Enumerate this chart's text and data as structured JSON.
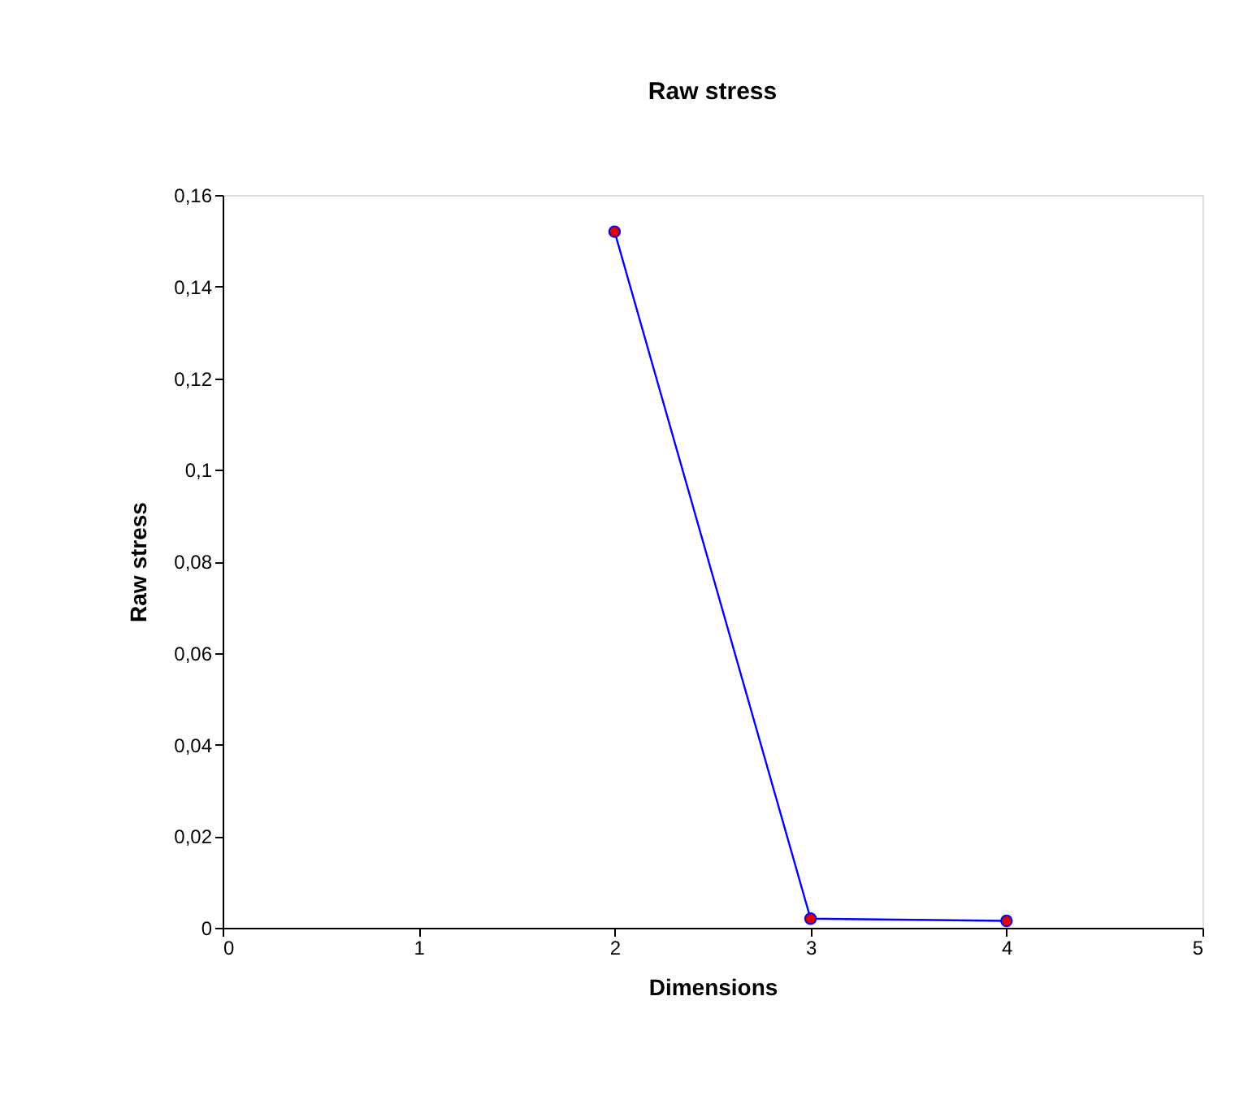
{
  "chart_data": {
    "type": "line",
    "title": "Raw stress",
    "xlabel": "Dimensions",
    "ylabel": "Raw stress",
    "x": [
      2,
      3,
      4
    ],
    "series": [
      {
        "color": "#0000ff",
        "colors": [
          "#e00000",
          "#e00000",
          "#e00000"
        ],
        "values": [
          0.152,
          0.002,
          0.0015
        ]
      }
    ],
    "xlim": [
      0,
      5
    ],
    "xticks": [
      0,
      1,
      2,
      3,
      4,
      5
    ],
    "ylim": [
      0,
      0.16
    ],
    "yticks": [
      0,
      {
        "value": 0.02,
        "label": "0,02"
      },
      {
        "value": 0.04,
        "label": "0,04"
      },
      {
        "value": 0.06,
        "label": "0,06"
      },
      {
        "value": 0.08,
        "label": "0,08"
      },
      {
        "value": 0.1,
        "label": "0,1"
      },
      {
        "value": 0.12,
        "label": "0,12"
      },
      {
        "value": 0.14,
        "label": "0,14"
      },
      {
        "value": 0.16,
        "label": "0,16"
      }
    ],
    "grid": false,
    "marker": "circle",
    "line_style": "solid"
  }
}
